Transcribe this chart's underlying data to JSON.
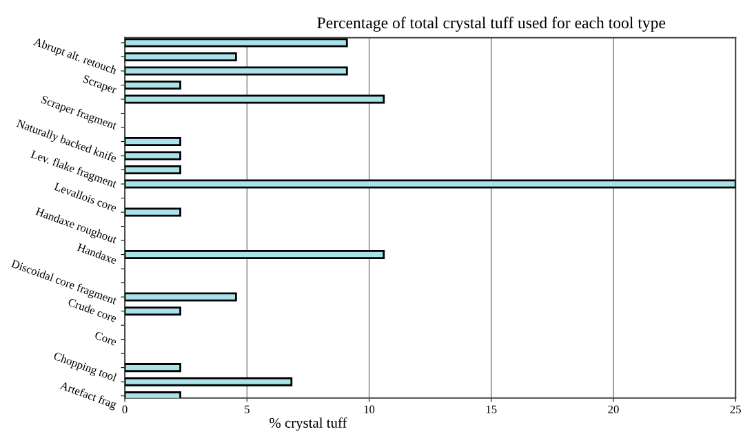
{
  "chart_data": {
    "type": "bar",
    "orientation": "horizontal",
    "title": "Percentage of total crystal tuff used for each tool type",
    "xlabel": "% crystal tuff",
    "categories": [
      null,
      "Abrupt alt. retouch",
      null,
      "Scraper",
      null,
      "Scraper fragment",
      null,
      "Naturally backed knife",
      null,
      "Lev. flake fragment",
      null,
      "Levallois core",
      null,
      "Handaxe roughout",
      null,
      "Handaxe",
      null,
      "Discoidal core fragment",
      null,
      "Crude core",
      null,
      "Core",
      null,
      "Chopping tool",
      null,
      "Artefact frag"
    ],
    "values": [
      9.09,
      4.55,
      9.09,
      2.27,
      10.6,
      0,
      0,
      2.27,
      2.27,
      2.27,
      25,
      0,
      2.27,
      0,
      0,
      10.6,
      0,
      0,
      4.55,
      2.27,
      0,
      0,
      0,
      2.27,
      6.82,
      2.27
    ],
    "color": "#a8e2ea",
    "xlim": [
      0,
      25
    ],
    "xticks": [
      0,
      5,
      10,
      15,
      20,
      25
    ],
    "grid": "x",
    "legend": false
  }
}
